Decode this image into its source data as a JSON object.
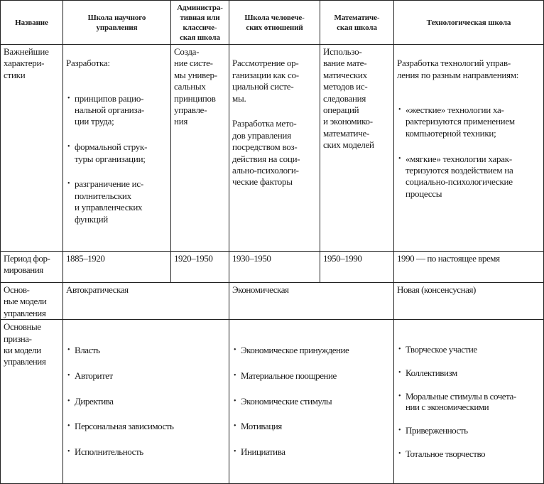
{
  "header": [
    "Название",
    "Школа научного\nуправления",
    "Администра-\nтивная или\nклассиче-\nская школа",
    "Школа человече-\nских отношений",
    "Математиче-\nская школа",
    "Технологическая школа"
  ],
  "characteristics": {
    "label": "Важнейшие\nхарактери-\nстики",
    "scientific": {
      "intro": "Разработка:",
      "bullets": [
        "принципов рацио-\nнальной организа-\nции труда;",
        "формальной струк-\nтуры организации;",
        "разграничение ис-\nполнительских\nи управленческих\nфункций"
      ]
    },
    "administrative": "Созда-\nние систе-\nмы универ-\nсальных\nпринципов\nуправле-\nния",
    "human_relations": {
      "p1": "Рассмотрение ор-\nганизации как со-\nциальной систе-\nмы.",
      "p2": "Разработка мето-\nдов управления\nпосредством воз-\nдействия на соци-\nально-психологи-\nческие факторы"
    },
    "mathematical": "Использо-\nвание мате-\nматических\nметодов ис-\nследования\nопераций\nи экономико-\nматематиче-\nских моделей",
    "technological": {
      "intro": "Разработка технологий управ-\nления по разным направлениям:",
      "bullets": [
        "«жесткие» технологии ха-\nрактеризуются применением\nкомпьютерной техники;",
        "«мягкие» технологии харак-\nтеризуются воздействием на\nсоциально-психологические\nпроцессы"
      ]
    }
  },
  "period": {
    "label": "Период фор-\nмирования",
    "values": [
      "1885–1920",
      "1920–1950",
      "1930–1950",
      "1950–1990",
      "1990 — по настоящее время"
    ]
  },
  "models": {
    "label": "Основ-\nные модели\nуправления",
    "values": [
      "Автократическая",
      "Экономическая",
      "Новая (консенсусная)"
    ]
  },
  "features": {
    "label": "Основные\nпризна-\nки модели\nуправления",
    "autocratic": [
      "Власть",
      "Авторитет",
      "Директива",
      "Персональная зависимость",
      "Исполнительность"
    ],
    "economic": [
      "Экономическое принуждение",
      "Материальное поощрение",
      "Экономические стимулы",
      "Мотивация",
      "Инициатива"
    ],
    "new": [
      "Творческое участие",
      "Коллективизм",
      "Моральные стимулы в сочета-\nнии с экономическими",
      "Приверженность",
      "Тотальное творчество"
    ]
  }
}
